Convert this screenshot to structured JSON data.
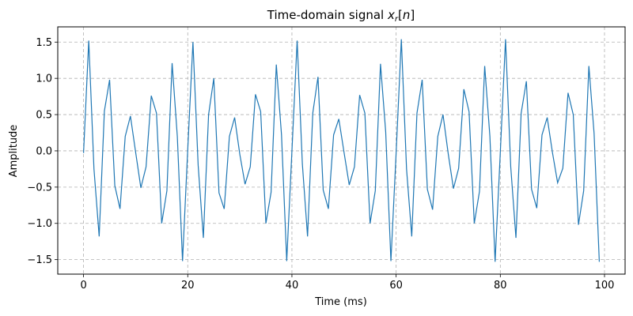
{
  "chart_data": {
    "type": "line",
    "title": "Time-domain signal x_r[n]",
    "title_parts": {
      "prefix": "Time-domain signal ",
      "var": "x",
      "sub": "r",
      "suffix": "[n]"
    },
    "xlabel": "Time (ms)",
    "ylabel": "Amplitude",
    "xlim": [
      -4.95,
      103.95
    ],
    "ylim": [
      -1.7,
      1.71
    ],
    "xticks": [
      0,
      20,
      40,
      60,
      80,
      100
    ],
    "xtick_labels": [
      "0",
      "20",
      "40",
      "60",
      "80",
      "100"
    ],
    "yticks": [
      -1.5,
      -1.0,
      -0.5,
      0.0,
      0.5,
      1.0,
      1.5
    ],
    "ytick_labels": [
      "−1.5",
      "−1.0",
      "−0.5",
      "0.0",
      "0.5",
      "1.0",
      "1.5"
    ],
    "grid": true,
    "grid_style": "dashed",
    "legend": null,
    "series": [
      {
        "name": "x_r[n]",
        "color": "#1f77b4",
        "x": [
          0,
          1,
          2,
          3,
          4,
          5,
          6,
          7,
          8,
          9,
          10,
          11,
          12,
          13,
          14,
          15,
          16,
          17,
          18,
          19,
          20,
          21,
          22,
          23,
          24,
          25,
          26,
          27,
          28,
          29,
          30,
          31,
          32,
          33,
          34,
          35,
          36,
          37,
          38,
          39,
          40,
          41,
          42,
          43,
          44,
          45,
          46,
          47,
          48,
          49,
          50,
          51,
          52,
          53,
          54,
          55,
          56,
          57,
          58,
          59,
          60,
          61,
          62,
          63,
          64,
          65,
          66,
          67,
          68,
          69,
          70,
          71,
          72,
          73,
          74,
          75,
          76,
          77,
          78,
          79,
          80,
          81,
          82,
          83,
          84,
          85,
          86,
          87,
          88,
          89,
          90,
          91,
          92,
          93,
          94,
          95,
          96,
          97,
          98,
          99
        ],
        "values": [
          -0.03,
          1.52,
          -0.25,
          -1.18,
          0.55,
          0.98,
          -0.48,
          -0.8,
          0.2,
          0.48,
          -0.02,
          -0.51,
          -0.22,
          0.76,
          0.52,
          -1.0,
          -0.55,
          1.21,
          0.2,
          -1.52,
          0.02,
          1.5,
          -0.2,
          -1.2,
          0.5,
          1.0,
          -0.58,
          -0.8,
          0.2,
          0.46,
          -0.05,
          -0.46,
          -0.22,
          0.78,
          0.54,
          -1.0,
          -0.57,
          1.19,
          0.22,
          -1.52,
          0.0,
          1.52,
          -0.18,
          -1.18,
          0.52,
          1.02,
          -0.54,
          -0.8,
          0.22,
          0.44,
          -0.02,
          -0.47,
          -0.22,
          0.77,
          0.52,
          -1.0,
          -0.55,
          1.2,
          0.26,
          -1.52,
          -0.03,
          1.54,
          -0.25,
          -1.18,
          0.52,
          0.98,
          -0.53,
          -0.81,
          0.2,
          0.5,
          -0.04,
          -0.52,
          -0.24,
          0.85,
          0.54,
          -1.0,
          -0.56,
          1.17,
          0.2,
          -1.53,
          -0.02,
          1.54,
          -0.22,
          -1.2,
          0.52,
          0.96,
          -0.53,
          -0.79,
          0.22,
          0.46,
          -0.02,
          -0.44,
          -0.24,
          0.8,
          0.5,
          -1.02,
          -0.55,
          1.17,
          0.24,
          -1.53
        ]
      }
    ]
  }
}
